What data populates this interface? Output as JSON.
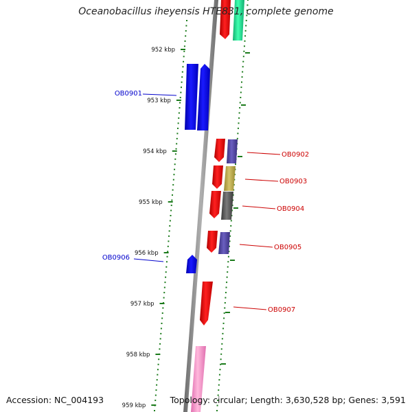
{
  "title": "Oceanobacillus iheyensis HTE831, complete genome",
  "footer": {
    "accession": "Accession: NC_004193",
    "summary": "Topology: circular; Length: 3,630,528 bp; Genes: 3,591"
  },
  "colors": {
    "backbone": "#8a8a8a",
    "tick": "#1a7a1a",
    "minus_label": "#0000cc",
    "plus_label": "#cc0000",
    "blue": "#0000ee",
    "red": "#ee0000",
    "slate": "#4a3f9a",
    "olive": "#b8a84a",
    "gray": "#555555",
    "green": "#22dd99",
    "pink": "#ff99cc"
  },
  "ticks": [
    {
      "label": "952 kbp"
    },
    {
      "label": "953 kbp"
    },
    {
      "label": "954 kbp"
    },
    {
      "label": "955 kbp"
    },
    {
      "label": "956 kbp"
    },
    {
      "label": "957 kbp"
    },
    {
      "label": "958 kbp"
    },
    {
      "label": "959 kbp"
    }
  ],
  "genes": [
    {
      "id": "OB0901",
      "label": "OB0901",
      "strand": "minus"
    },
    {
      "id": "OB0902",
      "label": "OB0902",
      "strand": "plus"
    },
    {
      "id": "OB0903",
      "label": "OB0903",
      "strand": "plus"
    },
    {
      "id": "OB0904",
      "label": "OB0904",
      "strand": "plus"
    },
    {
      "id": "OB0905",
      "label": "OB0905",
      "strand": "plus"
    },
    {
      "id": "OB0906",
      "label": "OB0906",
      "strand": "minus"
    },
    {
      "id": "OB0907",
      "label": "OB0907",
      "strand": "plus"
    }
  ]
}
